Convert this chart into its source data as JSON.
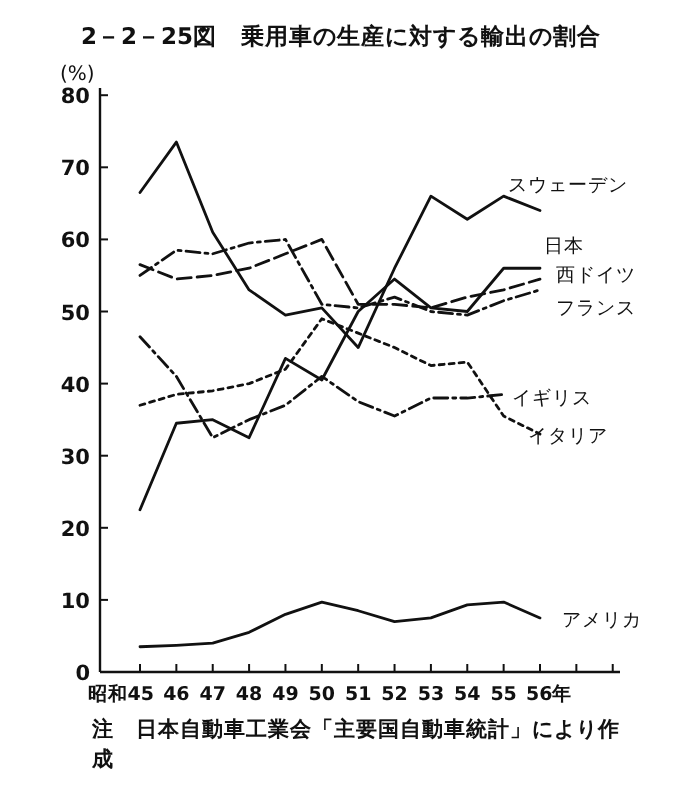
{
  "chart_data": {
    "type": "line",
    "title": "2－2－25図　乗用車の生産に対する輸出の割合",
    "ylabel": "(%)",
    "annotations": [
      "注　日本自動車工業会「主要国自動車統計」により作成"
    ],
    "x": [
      45,
      46,
      47,
      48,
      49,
      50,
      51,
      52,
      53,
      54,
      55,
      56
    ],
    "xlim": [
      43.9,
      58.2
    ],
    "xticks": [
      {
        "value": 45,
        "label": "昭和45"
      },
      46,
      47,
      48,
      49,
      50,
      51,
      52,
      53,
      54,
      55,
      {
        "value": 56,
        "label": "56年"
      },
      {
        "value": 57,
        "label": null
      },
      {
        "value": 58,
        "label": null
      }
    ],
    "ylim": [
      0,
      81
    ],
    "yticks": [
      0,
      10,
      20,
      30,
      40,
      50,
      60,
      70,
      80
    ],
    "grid": false,
    "legend": false,
    "marker": "none",
    "series": [
      {
        "name": "スウェーデン",
        "color": "#111111",
        "line_style": "solid",
        "values": [
          66.5,
          73.5,
          61,
          53,
          49.5,
          50.5,
          45,
          56,
          66,
          62.8,
          66,
          64
        ]
      },
      {
        "name": "日本",
        "color": "#111111",
        "line_style": "solid",
        "values": [
          22.5,
          34.5,
          35,
          32.5,
          43.5,
          40.5,
          50,
          54.5,
          50.5,
          50,
          56,
          56
        ]
      },
      {
        "name": "西ドイツ",
        "color": "#111111",
        "line_style": "dashed",
        "values": [
          56.5,
          54.5,
          55,
          56,
          58,
          60,
          51,
          51,
          50.5,
          52,
          53,
          54.5
        ]
      },
      {
        "name": "フランス",
        "color": "#111111",
        "line_style": "dashdot",
        "values": [
          55,
          58.5,
          58,
          59.5,
          60,
          51,
          50.5,
          52,
          50,
          49.5,
          51.5,
          53
        ]
      },
      {
        "name": "イギリス",
        "color": "#111111",
        "line_style": "dashdot",
        "values": [
          46.5,
          41,
          32.5,
          35,
          37,
          41,
          37.5,
          35.5,
          38,
          38,
          38.5,
          null
        ]
      },
      {
        "name": "イタリア",
        "color": "#111111",
        "line_style": "dotted",
        "values": [
          37,
          38.5,
          39,
          40,
          42,
          49,
          47,
          45,
          42.5,
          43,
          35.5,
          33
        ]
      },
      {
        "name": "アメリカ",
        "color": "#111111",
        "line_style": "solid",
        "values": [
          3.5,
          3.7,
          4,
          5.5,
          8,
          9.7,
          8.5,
          7,
          7.5,
          9.3,
          9.7,
          7.5
        ]
      }
    ]
  }
}
